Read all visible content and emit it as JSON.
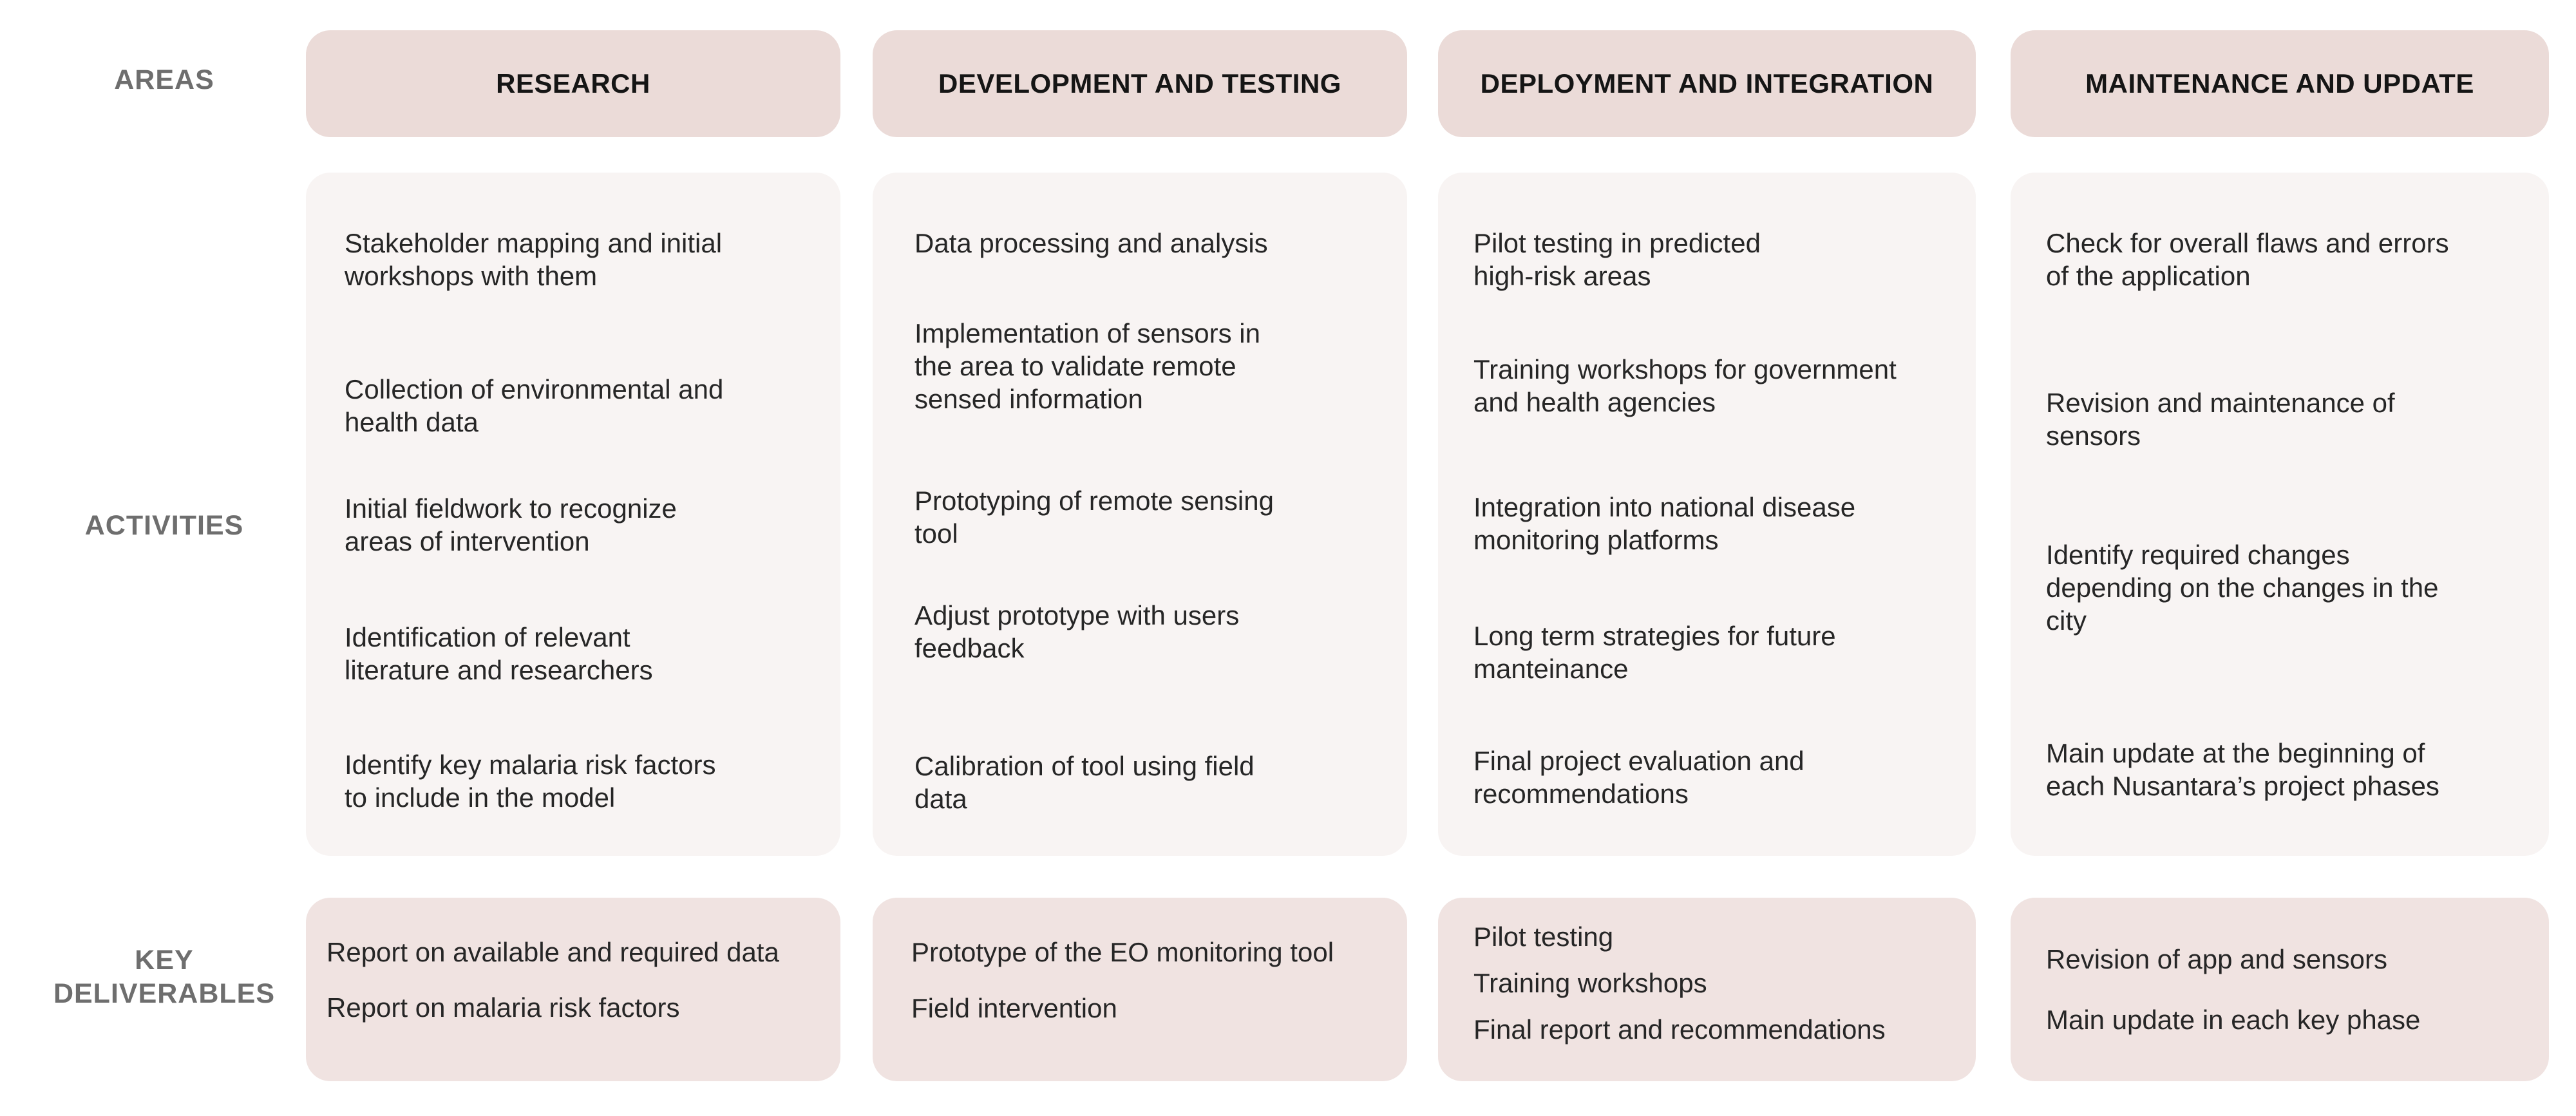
{
  "row_labels": {
    "areas": "AREAS",
    "activities": "ACTIVITIES",
    "deliverables": "KEY\nDELIVERABLES"
  },
  "columns": [
    {
      "header": "RESEARCH",
      "activities": [
        "Stakeholder mapping and initial\nworkshops with them",
        "Collection of environmental and\nhealth data",
        "Initial fieldwork to recognize\nareas of intervention",
        "Identification of relevant\nliterature and researchers",
        "Identify key malaria risk factors\nto include in the model"
      ],
      "deliverables": [
        "Report on available and required data",
        "Report on malaria risk factors"
      ]
    },
    {
      "header": "DEVELOPMENT AND TESTING",
      "activities": [
        "Data processing and analysis",
        "Implementation of sensors in\nthe area to validate remote\nsensed information",
        "Prototyping of remote sensing\ntool",
        "Adjust prototype with users\nfeedback",
        "Calibration of tool using field\ndata"
      ],
      "deliverables": [
        "Prototype of the EO monitoring tool",
        "Field intervention"
      ]
    },
    {
      "header": "DEPLOYMENT AND INTEGRATION",
      "activities": [
        "Pilot testing in predicted\nhigh-risk areas",
        "Training workshops for government\nand health agencies",
        "Integration into national disease\nmonitoring platforms",
        "Long term strategies for future\nmanteinance",
        "Final project evaluation and\nrecommendations"
      ],
      "deliverables": [
        "Pilot testing",
        "Training workshops",
        "Final report and recommendations"
      ]
    },
    {
      "header": "MAINTENANCE AND UPDATE",
      "activities": [
        "Check for overall flaws and errors\nof the application",
        "Revision and maintenance of\nsensors",
        "Identify required changes\ndepending on the changes in the\ncity",
        "Main update at the beginning of\neach Nusantara’s project phases"
      ],
      "deliverables": [
        "Revision of app and sensors",
        "Main update in each key phase"
      ]
    }
  ]
}
